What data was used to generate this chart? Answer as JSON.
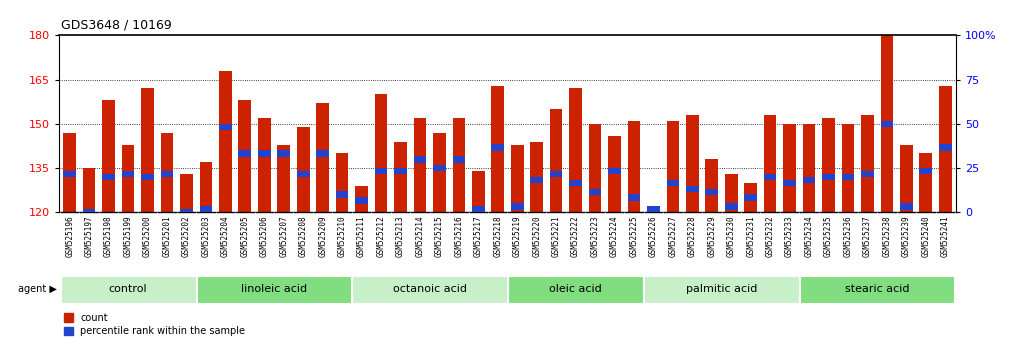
{
  "title": "GDS3648 / 10169",
  "samples": [
    "GSM525196",
    "GSM525197",
    "GSM525198",
    "GSM525199",
    "GSM525200",
    "GSM525201",
    "GSM525202",
    "GSM525203",
    "GSM525204",
    "GSM525205",
    "GSM525206",
    "GSM525207",
    "GSM525208",
    "GSM525209",
    "GSM525210",
    "GSM525211",
    "GSM525212",
    "GSM525213",
    "GSM525214",
    "GSM525215",
    "GSM525216",
    "GSM525217",
    "GSM525218",
    "GSM525219",
    "GSM525220",
    "GSM525221",
    "GSM525222",
    "GSM525223",
    "GSM525224",
    "GSM525225",
    "GSM525226",
    "GSM525227",
    "GSM525228",
    "GSM525229",
    "GSM525230",
    "GSM525231",
    "GSM525232",
    "GSM525233",
    "GSM525234",
    "GSM525235",
    "GSM525236",
    "GSM525237",
    "GSM525238",
    "GSM525239",
    "GSM525240",
    "GSM525241"
  ],
  "bar_heights": [
    147,
    135,
    158,
    143,
    162,
    147,
    133,
    137,
    168,
    158,
    152,
    143,
    149,
    157,
    140,
    129,
    160,
    144,
    152,
    147,
    152,
    134,
    163,
    143,
    144,
    155,
    162,
    150,
    146,
    151,
    122,
    151,
    153,
    138,
    133,
    130,
    153,
    150,
    150,
    152,
    150,
    153,
    180,
    143,
    140,
    163
  ],
  "percentile_values": [
    133,
    120,
    132,
    133,
    132,
    133,
    120,
    121,
    149,
    140,
    140,
    140,
    133,
    140,
    126,
    124,
    134,
    134,
    138,
    135,
    138,
    121,
    142,
    122,
    131,
    133,
    130,
    127,
    134,
    125,
    121,
    130,
    128,
    127,
    122,
    125,
    132,
    130,
    131,
    132,
    132,
    133,
    150,
    122,
    134,
    142
  ],
  "groups": [
    {
      "name": "control",
      "start": 0,
      "end": 7,
      "color": "#c8f0c8"
    },
    {
      "name": "linoleic acid",
      "start": 7,
      "end": 15,
      "color": "#80dd80"
    },
    {
      "name": "octanoic acid",
      "start": 15,
      "end": 23,
      "color": "#c8f0c8"
    },
    {
      "name": "oleic acid",
      "start": 23,
      "end": 30,
      "color": "#80dd80"
    },
    {
      "name": "palmitic acid",
      "start": 30,
      "end": 38,
      "color": "#c8f0c8"
    },
    {
      "name": "stearic acid",
      "start": 38,
      "end": 46,
      "color": "#80dd80"
    }
  ],
  "ylim_left": [
    120,
    180
  ],
  "ylim_right": [
    0,
    100
  ],
  "yticks_left": [
    120,
    135,
    150,
    165,
    180
  ],
  "yticks_right": [
    0,
    25,
    50,
    75,
    100
  ],
  "bar_color": "#cc2200",
  "percentile_color": "#2244cc",
  "bg_color": "#ffffff",
  "tick_area_color": "#cccccc",
  "title_fontsize": 9,
  "tick_fontsize": 5.5,
  "axis_label_fontsize": 8,
  "group_label_fontsize": 8
}
